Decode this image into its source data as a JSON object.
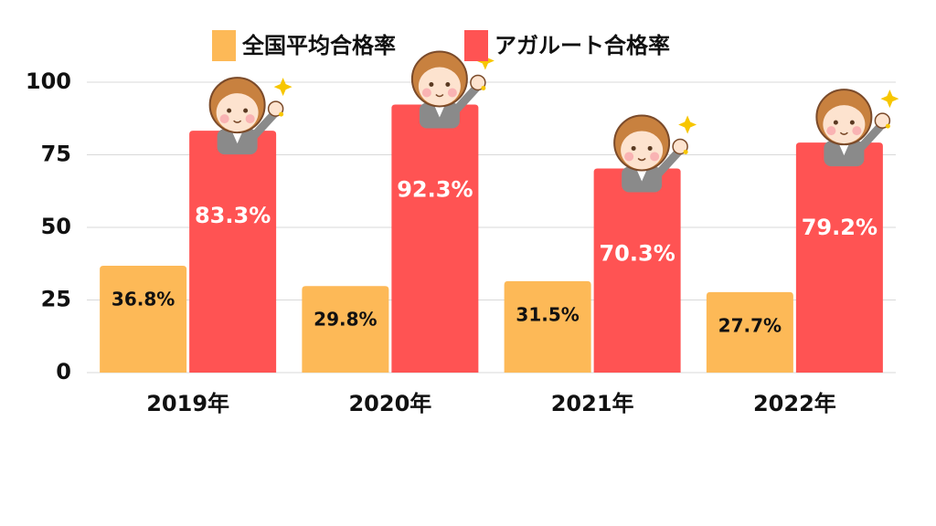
{
  "chart_data": {
    "type": "bar",
    "legend": "top",
    "categories": [
      "2019年",
      "2020年",
      "2021年",
      "2022年"
    ],
    "series": [
      {
        "name": "全国平均合格率",
        "color": "#fdb957",
        "values": [
          36.8,
          29.8,
          31.5,
          27.7
        ],
        "value_labels": [
          "36.8%",
          "29.8%",
          "31.5%",
          "27.7%"
        ]
      },
      {
        "name": "アガルート合格率",
        "color": "#ff5353",
        "values": [
          83.3,
          92.3,
          70.3,
          79.2
        ],
        "value_labels": [
          "83.3%",
          "92.3%",
          "70.3%",
          "79.2%"
        ]
      }
    ],
    "ylim": [
      0,
      100
    ],
    "yticks": [
      0,
      25,
      50,
      75,
      100
    ],
    "grid": true
  }
}
